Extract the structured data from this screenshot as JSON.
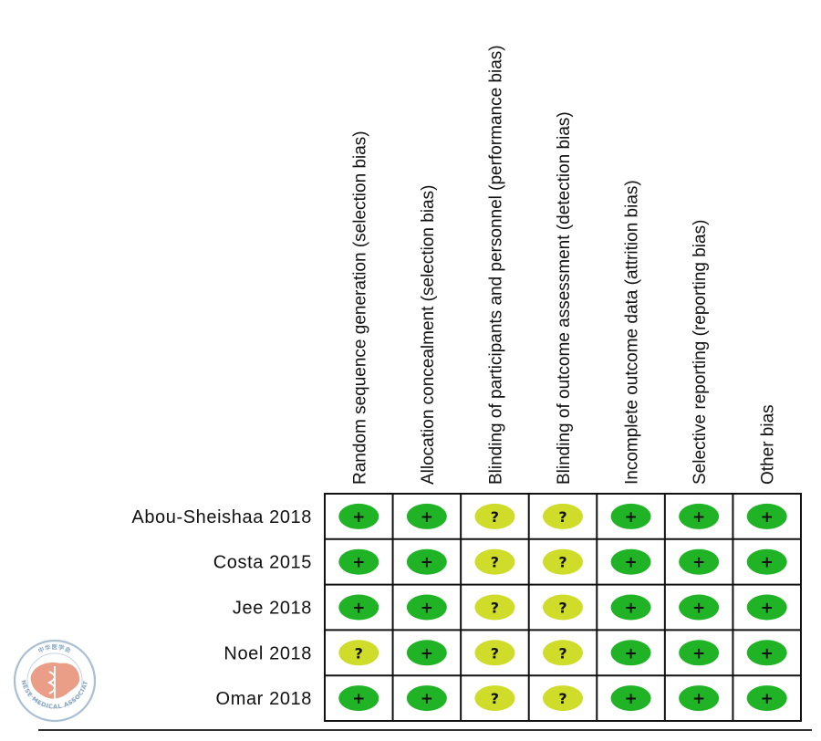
{
  "chart_data": {
    "type": "table",
    "columns": [
      "Random sequence generation (selection bias)",
      "Allocation concealment (selection bias)",
      "Blinding of participants and personnel (performance bias)",
      "Blinding of outcome assessment (detection bias)",
      "Incomplete outcome data (attrition bias)",
      "Selective reporting (reporting bias)",
      "Other bias"
    ],
    "rows": [
      "Abou-Sheishaa 2018",
      "Costa 2015",
      "Jee 2018",
      "Noel 2018",
      "Omar 2018"
    ],
    "values": [
      [
        "+",
        "+",
        "?",
        "?",
        "+",
        "+",
        "+"
      ],
      [
        "+",
        "+",
        "?",
        "?",
        "+",
        "+",
        "+"
      ],
      [
        "+",
        "+",
        "?",
        "?",
        "+",
        "+",
        "+"
      ],
      [
        "?",
        "+",
        "?",
        "?",
        "+",
        "+",
        "+"
      ],
      [
        "+",
        "+",
        "?",
        "?",
        "+",
        "+",
        "+"
      ]
    ],
    "legend": {
      "+": "green",
      "?": "yellow"
    },
    "colors": {
      "+": "#1fb325",
      "?": "#cfdc2a",
      "grid": "#111111"
    }
  },
  "logo": {
    "icon": "chinese-medical-association-logo",
    "text": "CHINESE MEDICAL ASSOCIATION",
    "characters": "中华医学会",
    "colors": {
      "ring": "#8aa7c2",
      "map": "#e8937a"
    }
  }
}
